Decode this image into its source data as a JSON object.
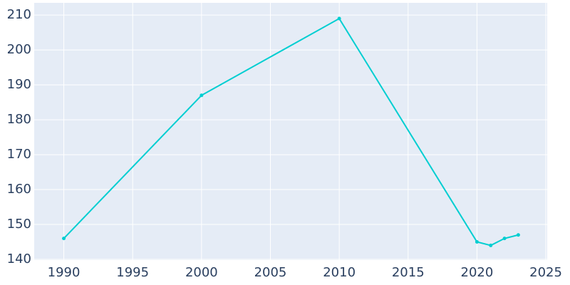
{
  "chart_data": {
    "type": "line",
    "x": [
      1990,
      2000,
      2010,
      2020,
      2021,
      2022,
      2023
    ],
    "series": [
      {
        "color": "#00ced1",
        "values": [
          146,
          187,
          209,
          145,
          144,
          146,
          147
        ]
      }
    ],
    "xlim": [
      1987.85,
      2025.1
    ],
    "xticks": [
      1990,
      1995,
      2000,
      2005,
      2010,
      2015,
      2020,
      2025
    ],
    "ylim": [
      139.8,
      213.5
    ],
    "yticks": [
      140,
      150,
      160,
      170,
      180,
      190,
      200,
      210
    ],
    "grid": true
  }
}
